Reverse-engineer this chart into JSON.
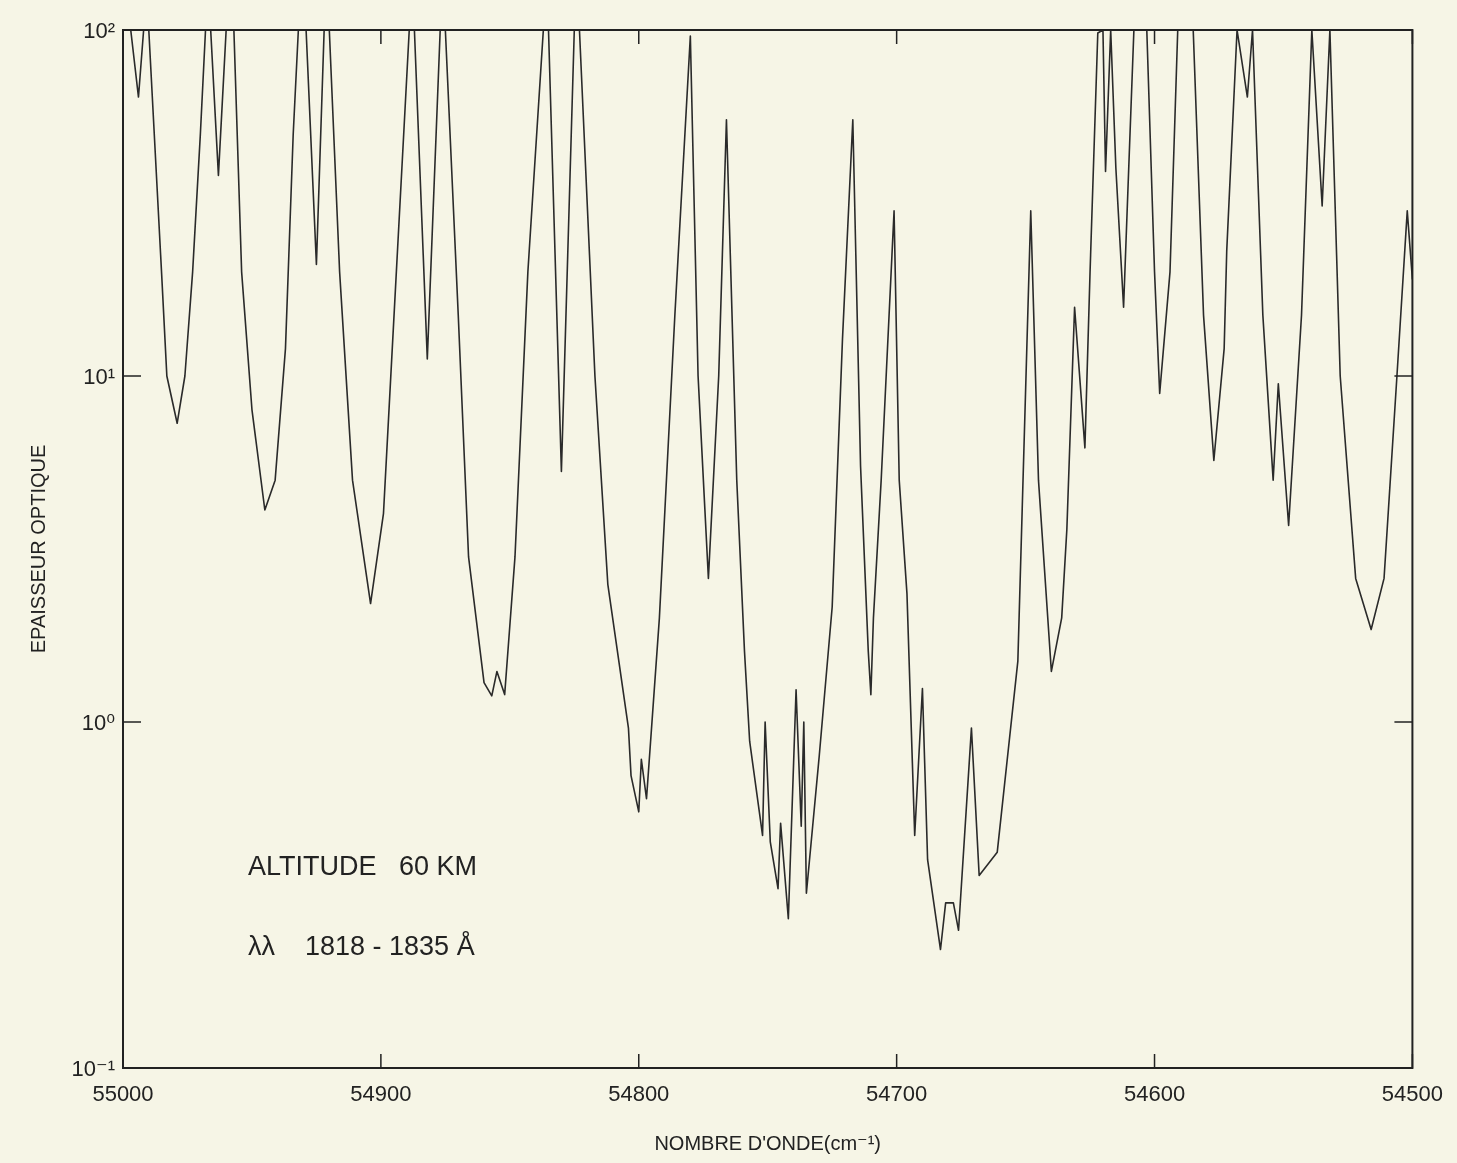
{
  "chart_data": {
    "type": "line",
    "xlabel": "NOMBRE D'ONDE(cm⁻¹)",
    "ylabel": "EPAISSEUR OPTIQUE",
    "annotations": [
      "ALTITUDE   60 KM",
      "λλ    1818 - 1835 Å"
    ],
    "log": "y",
    "legend": false,
    "marker": "none",
    "xlim": [
      55000,
      54500
    ],
    "xticks": [
      55000,
      54900,
      54800,
      54700,
      54600,
      54500
    ],
    "ylim": [
      0.1,
      100
    ],
    "yticks": [
      {
        "value": 0.1,
        "label": "10⁻¹"
      },
      {
        "value": 1,
        "label": "10⁰"
      },
      {
        "value": 10,
        "label": "10¹"
      },
      {
        "value": 100,
        "label": "10²"
      }
    ],
    "series": [
      {
        "color": "#2a2a2a",
        "x": [
          55000,
          54997,
          54994,
          54992,
          54990,
          54985,
          54983,
          54979,
          54976,
          54973,
          54970,
          54968,
          54966,
          54963,
          54960,
          54957,
          54954,
          54950,
          54945,
          54941,
          54937,
          54934,
          54932,
          54929,
          54925,
          54922,
          54920,
          54916,
          54911,
          54904,
          54899,
          54894,
          54889,
          54887,
          54882,
          54877,
          54875,
          54870,
          54866,
          54860,
          54857,
          54855,
          54852,
          54848,
          54843,
          54837,
          54835,
          54830,
          54825,
          54823,
          54817,
          54812,
          54804,
          54803,
          54800,
          54799,
          54797,
          54792,
          54786,
          54780,
          54777,
          54773,
          54769,
          54766,
          54762,
          54759,
          54757,
          54752,
          54751,
          54749,
          54746,
          54745,
          54742,
          54739,
          54737,
          54736,
          54735,
          54730,
          54725,
          54721,
          54717,
          54714,
          54711,
          54710,
          54709,
          54706,
          54701,
          54699,
          54696,
          54693,
          54690,
          54688,
          54683,
          54681,
          54678,
          54676,
          54671,
          54668,
          54661,
          54653,
          54648,
          54645,
          54640,
          54636,
          54634,
          54631,
          54627,
          54625,
          54622,
          54620,
          54619,
          54617,
          54615,
          54612,
          54610,
          54608,
          54603,
          54600,
          54598,
          54594,
          54591,
          54585,
          54581,
          54577,
          54573,
          54572,
          54568,
          54564,
          54562,
          54558,
          54554,
          54552,
          54548,
          54543,
          54539,
          54535,
          54532,
          54528,
          54522,
          54516,
          54511,
          54506,
          54502,
          54500
        ],
        "values": [
          100,
          100,
          64,
          100,
          100,
          19.6,
          10,
          7.3,
          10,
          20,
          50,
          100,
          100,
          38,
          100,
          100,
          20,
          8,
          4.1,
          5,
          12,
          50,
          100,
          100,
          21,
          100,
          100,
          20,
          5,
          2.2,
          4,
          20,
          100,
          100,
          11.2,
          100,
          100,
          15,
          3,
          1.3,
          1.19,
          1.4,
          1.2,
          3,
          20,
          100,
          100,
          5.3,
          100,
          100,
          10,
          2.5,
          0.96,
          0.7,
          0.55,
          0.78,
          0.6,
          2,
          15,
          96,
          10,
          2.6,
          10,
          55,
          5,
          1.6,
          0.88,
          0.47,
          1.0,
          0.45,
          0.33,
          0.51,
          0.27,
          1.24,
          0.5,
          1.0,
          0.32,
          0.8,
          2.15,
          12.8,
          55,
          5.5,
          1.6,
          1.2,
          2.0,
          5,
          30,
          5,
          2.35,
          0.47,
          1.25,
          0.4,
          0.22,
          0.3,
          0.3,
          0.25,
          0.96,
          0.36,
          0.42,
          1.5,
          30,
          5,
          1.4,
          2,
          3.6,
          15.8,
          6.2,
          20,
          98,
          100,
          39,
          100,
          40,
          15.8,
          40,
          100,
          100,
          20,
          8.9,
          20,
          100,
          100,
          15,
          5.7,
          12,
          23,
          100,
          64,
          100,
          15,
          5.0,
          9.5,
          3.7,
          15,
          100,
          31,
          100,
          10,
          2.6,
          1.85,
          2.6,
          10,
          30,
          19
        ]
      }
    ]
  }
}
